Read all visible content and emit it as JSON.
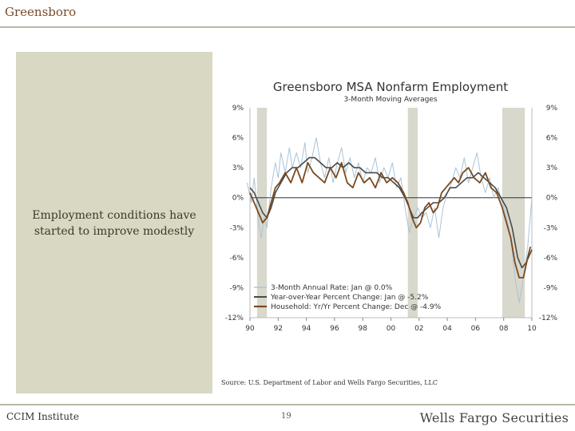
{
  "header": {
    "title": "Greensboro"
  },
  "side_panel": {
    "caption": "Employment conditions have started to improve modestly"
  },
  "source_note": "Source: U.S. Department of Labor and Wells Fargo Securities, LLC",
  "footer": {
    "left": "CCIM Institute",
    "page_number": "19",
    "brand": "Wells Fargo Securities"
  },
  "colors": {
    "brown": "#7a4a1e",
    "dark_gray": "#4a4a4a",
    "light_blue": "#a9c4d8",
    "recession": "#d9d8cc",
    "title_brown": "#7a4a2a"
  },
  "chart_data": {
    "type": "line",
    "title": "Greensboro MSA Nonfarm Employment",
    "subtitle": "3-Month Moving Averages",
    "ylim": [
      -12,
      9
    ],
    "xlim": [
      1990,
      2010
    ],
    "y_ticks": [
      9,
      6,
      3,
      0,
      -3,
      -6,
      -9,
      -12
    ],
    "y_tick_labels": [
      "9%",
      "6%",
      "3%",
      "0%",
      "-3%",
      "-6%",
      "-9%",
      "-12%"
    ],
    "x_ticks": [
      1990,
      1992,
      1994,
      1996,
      1998,
      2000,
      2002,
      2004,
      2006,
      2008,
      2010
    ],
    "x_tick_labels": [
      "90",
      "92",
      "94",
      "96",
      "98",
      "00",
      "02",
      "04",
      "06",
      "08",
      "10"
    ],
    "recessions": [
      [
        1990.5,
        1991.2
      ],
      [
        2001.2,
        2001.9
      ],
      [
        2007.9,
        2009.5
      ]
    ],
    "series": [
      {
        "name": "3-Month Annual Rate: Jan @ 0.0%",
        "style": "light",
        "x": [
          1989.8,
          1990.1,
          1990.3,
          1990.6,
          1990.8,
          1991.0,
          1991.2,
          1991.5,
          1991.8,
          1992.0,
          1992.2,
          1992.5,
          1992.8,
          1993.0,
          1993.3,
          1993.6,
          1993.9,
          1994.1,
          1994.4,
          1994.7,
          1995.0,
          1995.3,
          1995.6,
          1995.9,
          1996.2,
          1996.5,
          1996.8,
          1997.1,
          1997.4,
          1997.7,
          1998.0,
          1998.3,
          1998.6,
          1998.9,
          1999.2,
          1999.5,
          1999.8,
          2000.1,
          2000.4,
          2000.7,
          2001.0,
          2001.3,
          2001.6,
          2001.9,
          2002.2,
          2002.5,
          2002.8,
          2003.1,
          2003.4,
          2003.7,
          2004.0,
          2004.3,
          2004.6,
          2004.9,
          2005.2,
          2005.5,
          2005.8,
          2006.1,
          2006.4,
          2006.7,
          2007.0,
          2007.3,
          2007.6,
          2007.9,
          2008.2,
          2008.5,
          2008.8,
          2009.1,
          2009.4,
          2009.7,
          2010.0
        ],
        "values": [
          1.5,
          -0.5,
          2.0,
          -2.5,
          -4.0,
          -2.0,
          -3.0,
          1.0,
          3.5,
          2.0,
          4.5,
          2.5,
          5.0,
          3.0,
          4.5,
          3.0,
          5.5,
          2.5,
          4.0,
          6.0,
          3.5,
          2.0,
          4.0,
          1.5,
          3.5,
          5.0,
          2.5,
          4.0,
          2.0,
          3.5,
          1.5,
          3.0,
          2.5,
          4.0,
          1.5,
          3.0,
          2.0,
          3.5,
          1.0,
          2.0,
          -1.0,
          -3.5,
          -2.0,
          -1.0,
          -2.0,
          -1.5,
          -3.0,
          -1.0,
          -4.0,
          -1.0,
          0.5,
          1.5,
          3.0,
          2.0,
          4.0,
          1.5,
          3.0,
          4.5,
          2.0,
          0.5,
          2.0,
          0.0,
          1.0,
          -0.5,
          -2.0,
          -4.0,
          -8.0,
          -10.5,
          -8.0,
          -5.0,
          0.0
        ]
      },
      {
        "name": "Year-over-Year Percent Change: Jan @ -5.2%",
        "style": "dark",
        "x": [
          1990.0,
          1990.3,
          1990.6,
          1990.9,
          1991.2,
          1991.5,
          1991.8,
          1992.2,
          1992.6,
          1993.0,
          1993.4,
          1993.8,
          1994.2,
          1994.6,
          1995.0,
          1995.4,
          1995.8,
          1996.2,
          1996.6,
          1997.0,
          1997.4,
          1997.8,
          1998.2,
          1998.6,
          1999.0,
          1999.4,
          1999.8,
          2000.2,
          2000.6,
          2001.0,
          2001.3,
          2001.6,
          2001.9,
          2002.2,
          2002.6,
          2003.0,
          2003.4,
          2003.8,
          2004.2,
          2004.6,
          2005.0,
          2005.4,
          2005.8,
          2006.2,
          2006.6,
          2007.0,
          2007.4,
          2007.8,
          2008.2,
          2008.6,
          2009.0,
          2009.3,
          2009.6,
          2010.0
        ],
        "values": [
          1.0,
          0.5,
          -0.5,
          -1.5,
          -2.0,
          -1.0,
          0.5,
          1.5,
          2.5,
          3.0,
          3.0,
          3.5,
          4.0,
          4.0,
          3.5,
          3.0,
          3.0,
          3.5,
          3.0,
          3.5,
          3.0,
          3.0,
          2.5,
          2.5,
          2.5,
          2.0,
          2.0,
          1.5,
          1.0,
          0.0,
          -1.0,
          -2.0,
          -2.0,
          -1.5,
          -1.0,
          -0.5,
          -0.5,
          0.0,
          1.0,
          1.0,
          1.5,
          2.0,
          2.0,
          2.5,
          2.0,
          1.5,
          1.0,
          0.0,
          -1.0,
          -3.0,
          -6.0,
          -7.0,
          -6.5,
          -5.2
        ]
      },
      {
        "name": "Household: Yr/Yr Percent Change: Dec @ -4.9%",
        "style": "brown",
        "x": [
          1990.0,
          1990.3,
          1990.6,
          1990.9,
          1991.2,
          1991.5,
          1991.8,
          1992.1,
          1992.5,
          1992.9,
          1993.3,
          1993.7,
          1994.1,
          1994.5,
          1994.9,
          1995.3,
          1995.7,
          1996.1,
          1996.5,
          1996.9,
          1997.3,
          1997.7,
          1998.1,
          1998.5,
          1998.9,
          1999.3,
          1999.7,
          2000.1,
          2000.5,
          2000.9,
          2001.2,
          2001.5,
          2001.8,
          2002.1,
          2002.4,
          2002.7,
          2003.0,
          2003.3,
          2003.6,
          2003.9,
          2004.2,
          2004.5,
          2004.8,
          2005.1,
          2005.5,
          2005.9,
          2006.3,
          2006.7,
          2007.1,
          2007.5,
          2007.9,
          2008.2,
          2008.5,
          2008.8,
          2009.1,
          2009.4,
          2009.7,
          2009.9
        ],
        "values": [
          0.5,
          -0.5,
          -1.5,
          -2.5,
          -2.0,
          -0.5,
          1.0,
          1.5,
          2.5,
          1.5,
          3.0,
          1.5,
          3.5,
          2.5,
          2.0,
          1.5,
          3.0,
          2.0,
          3.5,
          1.5,
          1.0,
          2.5,
          1.5,
          2.0,
          1.0,
          2.5,
          1.5,
          2.0,
          1.5,
          0.5,
          -0.5,
          -2.0,
          -3.0,
          -2.5,
          -1.0,
          -0.5,
          -1.5,
          -1.0,
          0.5,
          1.0,
          1.5,
          2.0,
          1.5,
          2.5,
          3.0,
          2.0,
          1.5,
          2.5,
          1.0,
          0.5,
          -1.0,
          -2.5,
          -4.0,
          -6.5,
          -8.0,
          -8.0,
          -6.0,
          -4.9
        ]
      }
    ]
  }
}
